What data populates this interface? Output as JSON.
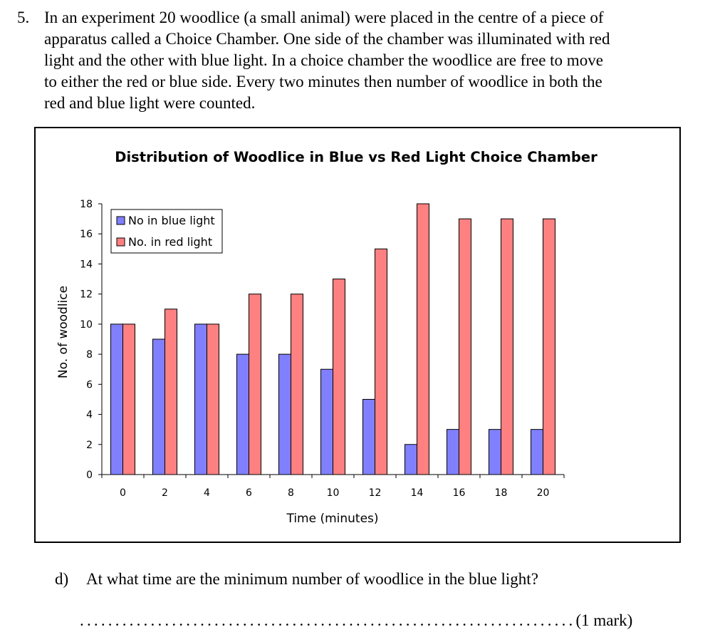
{
  "question": {
    "number": "5.",
    "lines": [
      "In an experiment 20 woodlice (a small animal) were placed in the centre of a piece of",
      "apparatus called a Choice Chamber.  One side of the chamber was illuminated with red",
      "light and the other with blue light.  In a choice chamber the woodlice are free to move",
      "to either the red or blue side.  Every two minutes then number of woodlice in both the",
      "red and blue light were counted."
    ]
  },
  "chart_data": {
    "type": "bar",
    "title": "Distribution of Woodlice in Blue vs Red Light Choice Chamber",
    "xlabel": "Time (minutes)",
    "ylabel": "No. of woodlice",
    "categories": [
      "0",
      "2",
      "4",
      "6",
      "8",
      "10",
      "12",
      "14",
      "16",
      "18",
      "20"
    ],
    "series": [
      {
        "name": "No in blue light",
        "values": [
          10,
          9,
          10,
          8,
          8,
          7,
          5,
          2,
          3,
          3,
          3
        ],
        "color": "#8080ff"
      },
      {
        "name": "No. in red light",
        "values": [
          10,
          11,
          10,
          12,
          12,
          13,
          15,
          18,
          17,
          17,
          17
        ],
        "color": "#ff8080"
      }
    ],
    "yticks": [
      "0",
      "2",
      "4",
      "6",
      "8",
      "10",
      "12",
      "14",
      "16",
      "18"
    ],
    "ylim": [
      0,
      18
    ],
    "grid": false,
    "legend_position": "top-left"
  },
  "sub_question": {
    "label": "d)",
    "text": "At what time are the minimum number of woodlice in the blue light?"
  },
  "answer": {
    "dots": "......................................................................",
    "marks": "(1 mark)"
  }
}
